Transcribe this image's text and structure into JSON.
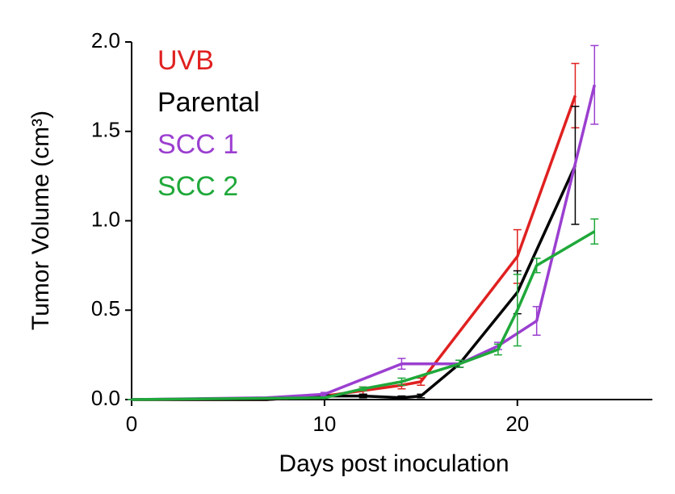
{
  "chart_data": {
    "type": "line",
    "xlabel": "Days post inoculation",
    "ylabel": "Tumor Volume (cm³)",
    "xlim": [
      0,
      27
    ],
    "xticks": [
      0,
      10,
      20
    ],
    "ylim": [
      0,
      2
    ],
    "yticks": [
      {
        "value": 0,
        "label": "0.0"
      },
      {
        "value": 0.5,
        "label": "0.5"
      },
      {
        "value": 1,
        "label": "1.0"
      },
      {
        "value": 1.5,
        "label": "1.5"
      },
      {
        "value": 2,
        "label": "2.0"
      }
    ],
    "series": [
      {
        "name": "UVB",
        "color": "#e02020",
        "x": [
          0,
          7,
          10,
          12,
          14,
          15,
          20,
          23
        ],
        "values": [
          0,
          0,
          0.02,
          0.05,
          0.08,
          0.1,
          0.8,
          1.7
        ],
        "errors": [
          0,
          0,
          0.01,
          0.02,
          0.02,
          0.02,
          0.15,
          0.18
        ]
      },
      {
        "name": "Parental",
        "color": "#000000",
        "x": [
          0,
          7,
          10,
          12,
          14,
          15,
          17,
          20,
          23
        ],
        "values": [
          0,
          0,
          0.02,
          0.02,
          0.01,
          0.02,
          0.2,
          0.6,
          1.31
        ],
        "errors": [
          0,
          0,
          0.01,
          0.01,
          0.01,
          0.01,
          0.02,
          0.12,
          0.33
        ]
      },
      {
        "name": "SCC 1",
        "color": "#9b3fd0",
        "x": [
          0,
          7,
          10,
          14,
          17,
          19,
          21,
          24
        ],
        "values": [
          0,
          0.01,
          0.03,
          0.2,
          0.2,
          0.3,
          0.44,
          1.76
        ],
        "errors": [
          0,
          0,
          0.01,
          0.03,
          0.02,
          0.02,
          0.08,
          0.22
        ]
      },
      {
        "name": "SCC 2",
        "color": "#1fa83a",
        "x": [
          0,
          10,
          12,
          14,
          17,
          19,
          20,
          21,
          24
        ],
        "values": [
          0,
          0.01,
          0.06,
          0.1,
          0.2,
          0.28,
          0.5,
          0.75,
          0.94
        ],
        "errors": [
          0,
          0,
          0.01,
          0.02,
          0.02,
          0.03,
          0.2,
          0.04,
          0.07
        ]
      }
    ]
  }
}
